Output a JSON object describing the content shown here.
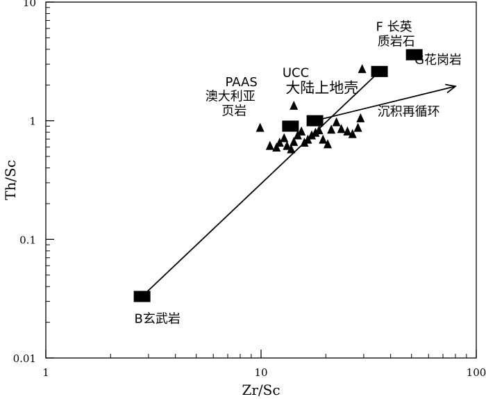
{
  "chart_data": {
    "type": "scatter",
    "xlabel": "Zr/Sc",
    "ylabel": "Th/Sc",
    "x_scale": "log",
    "y_scale": "log",
    "xlim": [
      1,
      100
    ],
    "ylim": [
      0.01,
      10
    ],
    "x_ticks": [
      {
        "value": 1,
        "label": "1"
      },
      {
        "value": 10,
        "label": "10"
      },
      {
        "value": 100,
        "label": "100"
      }
    ],
    "y_ticks": [
      {
        "value": 0.01,
        "label": "0.01"
      },
      {
        "value": 0.1,
        "label": "0.1"
      },
      {
        "value": 1,
        "label": "1"
      },
      {
        "value": 10,
        "label": "10"
      }
    ],
    "grid": false,
    "references": [
      {
        "label": "B玄武岩",
        "x": 2.8,
        "y": 0.033
      },
      {
        "label": "",
        "x": 13.7,
        "y": 0.9
      },
      {
        "label": "",
        "x": 17.8,
        "y": 1.0
      },
      {
        "label": "",
        "x": 35.5,
        "y": 2.6
      },
      {
        "label": "",
        "x": 51.5,
        "y": 3.6
      }
    ],
    "samples": [
      {
        "x": 9.9,
        "y": 0.88
      },
      {
        "x": 14.2,
        "y": 1.35
      },
      {
        "x": 29.5,
        "y": 2.75
      },
      {
        "x": 11.0,
        "y": 0.62
      },
      {
        "x": 11.8,
        "y": 0.6
      },
      {
        "x": 12.2,
        "y": 0.66
      },
      {
        "x": 12.8,
        "y": 0.72
      },
      {
        "x": 13.2,
        "y": 0.62
      },
      {
        "x": 13.8,
        "y": 0.58
      },
      {
        "x": 14.2,
        "y": 0.67
      },
      {
        "x": 14.8,
        "y": 0.76
      },
      {
        "x": 15.4,
        "y": 0.82
      },
      {
        "x": 15.9,
        "y": 0.66
      },
      {
        "x": 16.5,
        "y": 0.7
      },
      {
        "x": 17.2,
        "y": 0.76
      },
      {
        "x": 17.9,
        "y": 0.8
      },
      {
        "x": 18.6,
        "y": 0.84
      },
      {
        "x": 19.4,
        "y": 0.7
      },
      {
        "x": 20.4,
        "y": 0.64
      },
      {
        "x": 21.2,
        "y": 0.85
      },
      {
        "x": 22.4,
        "y": 0.98
      },
      {
        "x": 23.6,
        "y": 0.86
      },
      {
        "x": 25.2,
        "y": 0.82
      },
      {
        "x": 26.6,
        "y": 0.78
      },
      {
        "x": 28.2,
        "y": 0.88
      },
      {
        "x": 29.0,
        "y": 1.06
      }
    ],
    "arrows": [
      {
        "from": {
          "x": 2.8,
          "y": 0.033
        },
        "to": {
          "x": 35.5,
          "y": 2.6
        },
        "head": false
      },
      {
        "from": {
          "x": 17.8,
          "y": 1.0
        },
        "to": {
          "x": 80,
          "y": 1.95
        },
        "head": true
      }
    ],
    "annotations": [
      {
        "text": "PAAS",
        "x": 8.1,
        "y": 1.95,
        "size": "normal"
      },
      {
        "text": "澳大利亚",
        "x": 7.2,
        "y": 1.48,
        "size": "normal"
      },
      {
        "text": "页岩",
        "x": 7.5,
        "y": 1.12,
        "size": "normal"
      },
      {
        "text": "UCC",
        "x": 14.5,
        "y": 2.35,
        "size": "normal"
      },
      {
        "text": "大陆上地壳",
        "x": 19.2,
        "y": 1.72,
        "size": "big"
      },
      {
        "text": "F 长英",
        "x": 41.5,
        "y": 5.7,
        "size": "normal"
      },
      {
        "text": "质岩石",
        "x": 42.5,
        "y": 4.3,
        "size": "normal"
      },
      {
        "text": "G花岗岩",
        "x": 66.5,
        "y": 3.0,
        "size": "normal"
      },
      {
        "text": "沉积再循环",
        "x": 48.5,
        "y": 1.1,
        "size": "normal"
      },
      {
        "text": "B玄武岩",
        "x": 3.3,
        "y": 0.0198,
        "size": "normal"
      }
    ]
  }
}
